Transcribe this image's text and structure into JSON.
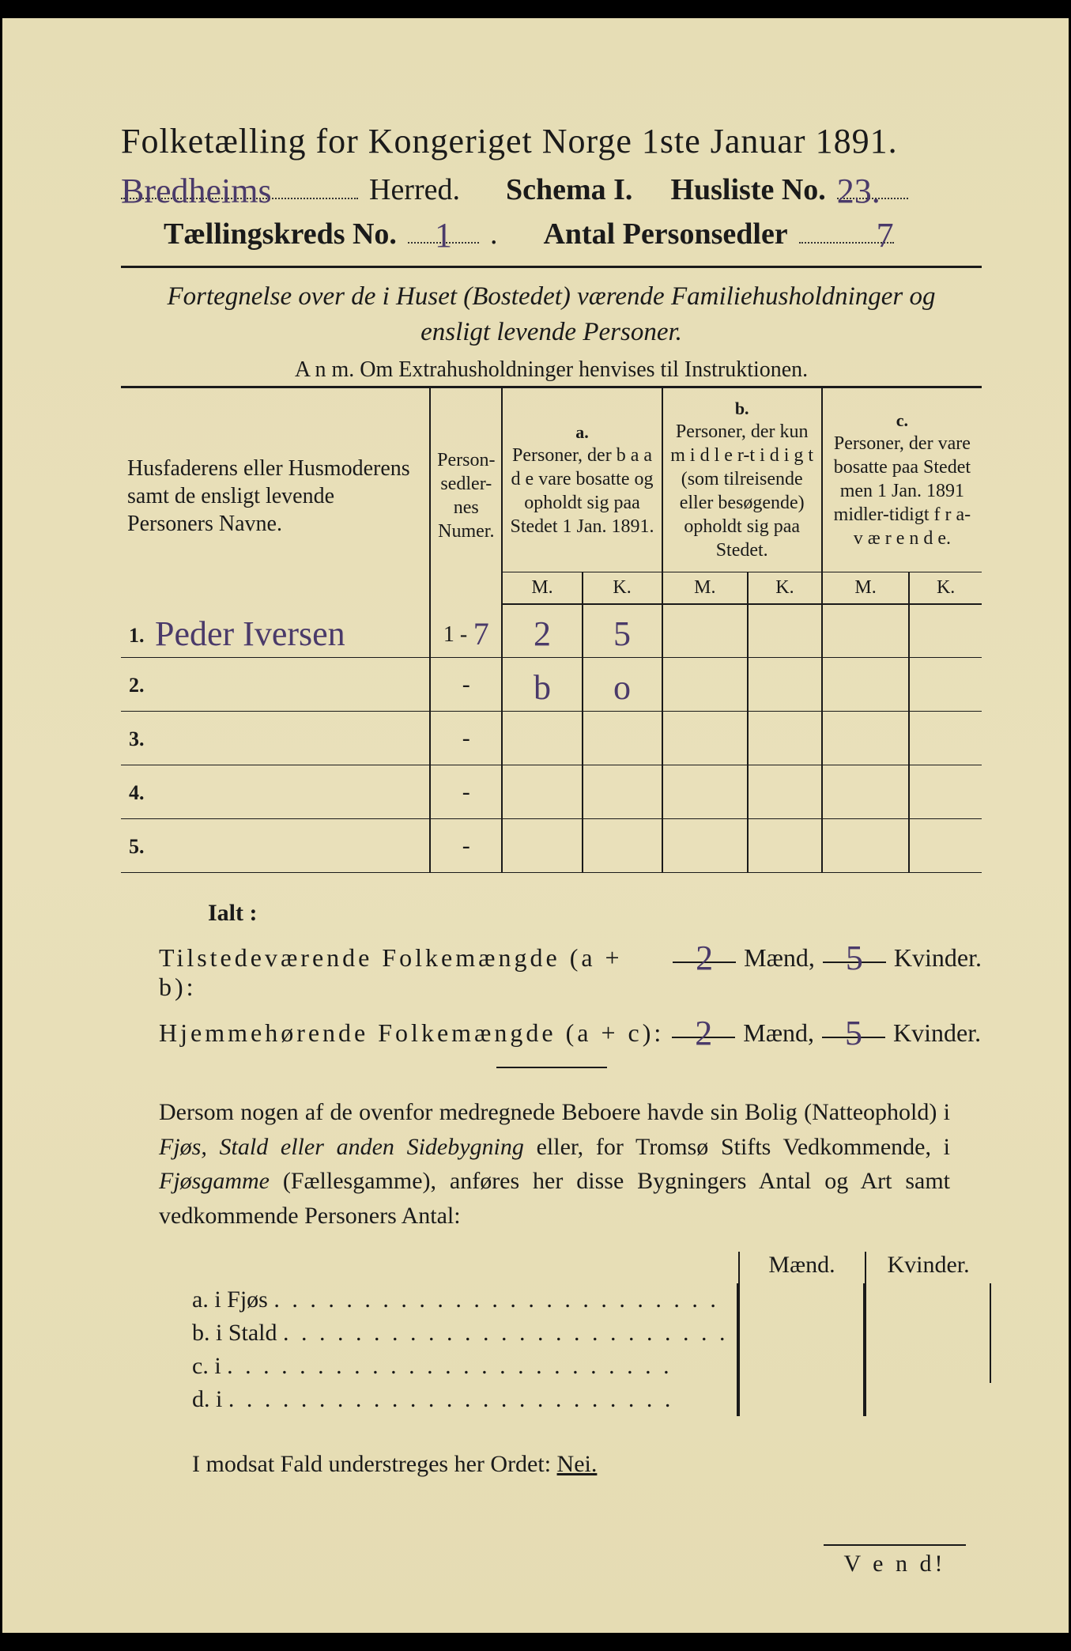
{
  "colors": {
    "paper": "#e8dfb8",
    "ink": "#1a1a1a",
    "handwriting": "#4a3a6a",
    "border": "#000000"
  },
  "typography": {
    "title_size_pt": 44,
    "header_size_pt": 38,
    "body_size_pt": 30,
    "table_header_size_pt": 24,
    "handwriting_size_pt": 44
  },
  "header": {
    "title": "Folketælling for Kongeriget Norge 1ste Januar 1891.",
    "herred_value": "Bredheims",
    "herred_label": "Herred.",
    "schema_label": "Schema I.",
    "husliste_label": "Husliste No.",
    "husliste_value": "23.",
    "kreds_label": "Tællingskreds No.",
    "kreds_value": "1",
    "personsedler_label": "Antal Personsedler",
    "personsedler_value": "7"
  },
  "subtitle": "Fortegnelse over de i Huset (Bostedet) værende Familiehusholdninger og ensligt levende Personer.",
  "anm": "A n m.  Om Extrahusholdninger henvises til Instruktionen.",
  "table": {
    "col_name": "Husfaderens eller Husmoderens samt de ensligt levende Personers Navne.",
    "col_num": "Person-sedler-nes Numer.",
    "col_a_label": "a.",
    "col_a": "Personer, der b a a d e vare bosatte og opholdt sig paa Stedet 1 Jan. 1891.",
    "col_b_label": "b.",
    "col_b": "Personer, der kun m i d l e r-t i d i g t (som tilreisende eller besøgende) opholdt sig paa Stedet.",
    "col_c_label": "c.",
    "col_c": "Personer, der vare bosatte paa Stedet men 1 Jan. 1891 midler-tidigt f r a-v æ r e n d e.",
    "mk_m": "M.",
    "mk_k": "K.",
    "rows": [
      {
        "n": "1.",
        "name": "Peder Iversen",
        "num": "1 - 7",
        "a_m": "2",
        "a_k": "5",
        "b_m": "",
        "b_k": "",
        "c_m": "",
        "c_k": ""
      },
      {
        "n": "2.",
        "name": "",
        "num": "-",
        "a_m": "b",
        "a_k": "o",
        "b_m": "",
        "b_k": "",
        "c_m": "",
        "c_k": ""
      },
      {
        "n": "3.",
        "name": "",
        "num": "-",
        "a_m": "",
        "a_k": "",
        "b_m": "",
        "b_k": "",
        "c_m": "",
        "c_k": ""
      },
      {
        "n": "4.",
        "name": "",
        "num": "-",
        "a_m": "",
        "a_k": "",
        "b_m": "",
        "b_k": "",
        "c_m": "",
        "c_k": ""
      },
      {
        "n": "5.",
        "name": "",
        "num": "-",
        "a_m": "",
        "a_k": "",
        "b_m": "",
        "b_k": "",
        "c_m": "",
        "c_k": ""
      }
    ]
  },
  "ialt_label": "Ialt :",
  "totals": {
    "line1_label": "Tilstedeværende Folkemængde (a + b):",
    "line2_label": "Hjemmehørende Folkemængde (a + c):",
    "maend_label": "Mænd,",
    "kvinder_label": "Kvinder.",
    "line1_m": "2",
    "line1_k": "5",
    "line2_m": "2",
    "line2_k": "5"
  },
  "para": {
    "text1": "Dersom nogen af de ovenfor medregnede Beboere havde sin Bolig (Natteophold) i ",
    "it1": "Fjøs, Stald eller anden Sidebygning",
    "text2": " eller, for Tromsø Stifts Vedkommende, i ",
    "it2": "Fjøsgamme",
    "text3": " (Fællesgamme), anføres her disse Bygningers Antal og Art samt vedkommende Personers Antal:"
  },
  "side": {
    "hdr_m": "Mænd.",
    "hdr_k": "Kvinder.",
    "rows": [
      {
        "lab": "a.  i      Fjøs"
      },
      {
        "lab": "b.  i      Stald"
      },
      {
        "lab": "c.  i"
      },
      {
        "lab": "d.  i"
      }
    ]
  },
  "bottom": {
    "text": "I modsat Fald understreges her Ordet: ",
    "nei": "Nei."
  },
  "vend": "V e n d!"
}
